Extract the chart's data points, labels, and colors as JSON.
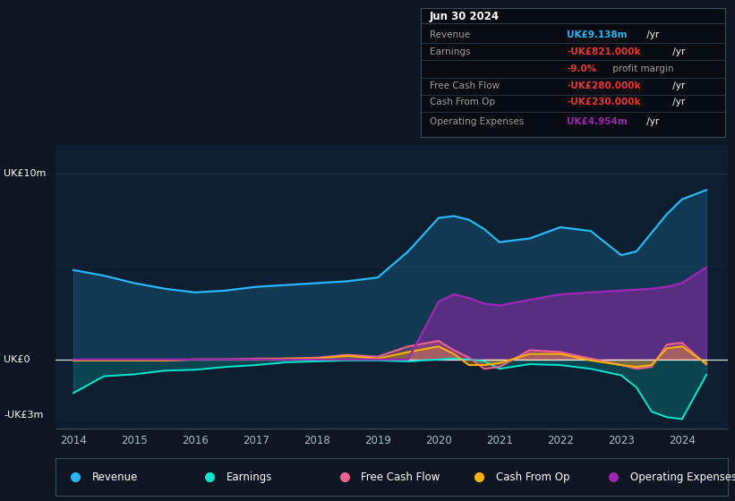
{
  "bg_color": "#0e1621",
  "plot_bg_color": "#0d1e30",
  "x_years": [
    2014,
    2014.5,
    2015,
    2015.5,
    2016,
    2016.5,
    2017,
    2017.5,
    2018,
    2018.5,
    2019,
    2019.5,
    2020,
    2020.25,
    2020.5,
    2020.75,
    2021,
    2021.5,
    2022,
    2022.5,
    2023,
    2023.25,
    2023.5,
    2023.75,
    2024,
    2024.4
  ],
  "revenue": [
    4.8,
    4.5,
    4.1,
    3.8,
    3.6,
    3.7,
    3.9,
    4.0,
    4.1,
    4.2,
    4.4,
    5.8,
    7.6,
    7.7,
    7.5,
    7.0,
    6.3,
    6.5,
    7.1,
    6.9,
    5.6,
    5.8,
    6.8,
    7.8,
    8.6,
    9.1
  ],
  "earnings": [
    -1.8,
    -0.9,
    -0.8,
    -0.6,
    -0.55,
    -0.4,
    -0.3,
    -0.15,
    -0.1,
    -0.05,
    -0.05,
    -0.1,
    0.0,
    0.05,
    0.0,
    -0.1,
    -0.5,
    -0.25,
    -0.3,
    -0.5,
    -0.85,
    -1.5,
    -2.8,
    -3.1,
    -3.2,
    -0.82
  ],
  "free_cash_flow": [
    -0.05,
    -0.05,
    -0.05,
    -0.05,
    -0.0,
    0.0,
    0.05,
    0.05,
    0.1,
    0.25,
    0.15,
    0.7,
    1.0,
    0.5,
    0.1,
    -0.5,
    -0.4,
    0.5,
    0.4,
    0.05,
    -0.3,
    -0.5,
    -0.4,
    0.8,
    0.9,
    -0.28
  ],
  "cash_from_op": [
    -0.05,
    -0.05,
    -0.05,
    -0.05,
    -0.0,
    0.0,
    0.0,
    0.05,
    0.05,
    0.2,
    0.05,
    0.4,
    0.7,
    0.3,
    -0.3,
    -0.3,
    -0.2,
    0.3,
    0.3,
    -0.05,
    -0.3,
    -0.4,
    -0.3,
    0.6,
    0.7,
    -0.23
  ],
  "operating_expenses": [
    0.0,
    0.0,
    0.0,
    0.0,
    0.0,
    0.0,
    0.0,
    0.0,
    0.0,
    0.0,
    0.0,
    0.0,
    3.1,
    3.5,
    3.3,
    3.0,
    2.9,
    3.2,
    3.5,
    3.6,
    3.7,
    3.75,
    3.8,
    3.9,
    4.1,
    4.95
  ],
  "ylim": [
    -3.7,
    11.5
  ],
  "revenue_color": "#29b6f6",
  "earnings_color": "#00e5cc",
  "fcf_color": "#f06292",
  "cfo_color": "#ffb300",
  "opex_color": "#9c27b0",
  "legend_labels": [
    "Revenue",
    "Earnings",
    "Free Cash Flow",
    "Cash From Op",
    "Operating Expenses"
  ],
  "legend_colors": [
    "#29b6f6",
    "#00e5cc",
    "#f06292",
    "#ffb300",
    "#9c27b0"
  ]
}
